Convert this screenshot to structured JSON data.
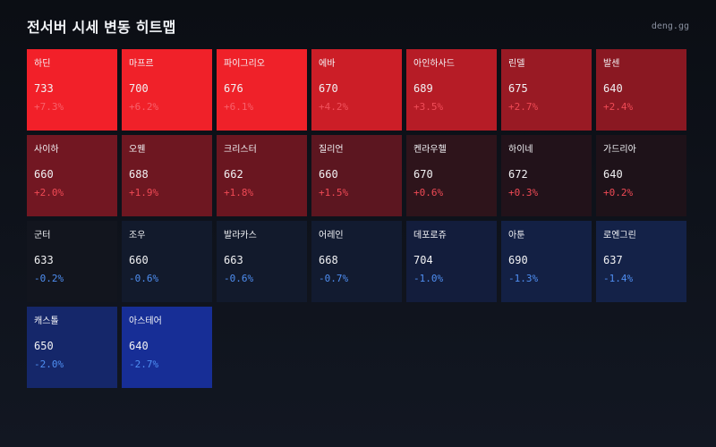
{
  "header": {
    "title": "전서버 시세 변동 히트맵",
    "brand": "deng.gg"
  },
  "tiles": [
    {
      "name": "하딘",
      "price": "733",
      "change": "+7.3%",
      "pct": 7.3,
      "bg": "#f22029",
      "change_color": "#f8606a"
    },
    {
      "name": "마프르",
      "price": "700",
      "change": "+6.2%",
      "pct": 6.2,
      "bg": "#f02129",
      "change_color": "#f8606a"
    },
    {
      "name": "파이그리오",
      "price": "676",
      "change": "+6.1%",
      "pct": 6.1,
      "bg": "#ef2129",
      "change_color": "#f8606a"
    },
    {
      "name": "에바",
      "price": "670",
      "change": "+4.2%",
      "pct": 4.2,
      "bg": "#cc1e27",
      "change_color": "#f2525c"
    },
    {
      "name": "아인하사드",
      "price": "689",
      "change": "+3.5%",
      "pct": 3.5,
      "bg": "#b61c26",
      "change_color": "#f04d58"
    },
    {
      "name": "린델",
      "price": "675",
      "change": "+2.7%",
      "pct": 2.7,
      "bg": "#991a24",
      "change_color": "#f04a55"
    },
    {
      "name": "발센",
      "price": "640",
      "change": "+2.4%",
      "pct": 2.4,
      "bg": "#8a1822",
      "change_color": "#f04a55"
    },
    {
      "name": "사이하",
      "price": "660",
      "change": "+2.0%",
      "pct": 2.0,
      "bg": "#721722",
      "change_color": "#f04a55"
    },
    {
      "name": "오웬",
      "price": "688",
      "change": "+1.9%",
      "pct": 1.9,
      "bg": "#6e1721",
      "change_color": "#f04a55"
    },
    {
      "name": "크리스터",
      "price": "662",
      "change": "+1.8%",
      "pct": 1.8,
      "bg": "#6a1620",
      "change_color": "#f04a55"
    },
    {
      "name": "질리언",
      "price": "660",
      "change": "+1.5%",
      "pct": 1.5,
      "bg": "#5c1620",
      "change_color": "#f04a55"
    },
    {
      "name": "켄라우헬",
      "price": "670",
      "change": "+0.6%",
      "pct": 0.6,
      "bg": "#2e141b",
      "change_color": "#f04a55"
    },
    {
      "name": "하이네",
      "price": "672",
      "change": "+0.3%",
      "pct": 0.3,
      "bg": "#22121a",
      "change_color": "#f04a55"
    },
    {
      "name": "가드리아",
      "price": "640",
      "change": "+0.2%",
      "pct": 0.2,
      "bg": "#1e1219",
      "change_color": "#f04a55"
    },
    {
      "name": "군터",
      "price": "633",
      "change": "-0.2%",
      "pct": -0.2,
      "bg": "#12151e",
      "change_color": "#4f8ff2"
    },
    {
      "name": "조우",
      "price": "660",
      "change": "-0.6%",
      "pct": -0.6,
      "bg": "#121a2c",
      "change_color": "#4f8ff2"
    },
    {
      "name": "발라카스",
      "price": "663",
      "change": "-0.6%",
      "pct": -0.6,
      "bg": "#121a2c",
      "change_color": "#4f8ff2"
    },
    {
      "name": "어레인",
      "price": "668",
      "change": "-0.7%",
      "pct": -0.7,
      "bg": "#121b30",
      "change_color": "#4f8ff2"
    },
    {
      "name": "데포로쥬",
      "price": "704",
      "change": "-1.0%",
      "pct": -1.0,
      "bg": "#131d3c",
      "change_color": "#4f8ff2"
    },
    {
      "name": "아툰",
      "price": "690",
      "change": "-1.3%",
      "pct": -1.3,
      "bg": "#132044",
      "change_color": "#4f8ff2"
    },
    {
      "name": "로엔그린",
      "price": "637",
      "change": "-1.4%",
      "pct": -1.4,
      "bg": "#142248",
      "change_color": "#4f8ff2"
    },
    {
      "name": "캐스톨",
      "price": "650",
      "change": "-2.0%",
      "pct": -2.0,
      "bg": "#15276a",
      "change_color": "#4f8ff2"
    },
    {
      "name": "아스테어",
      "price": "640",
      "change": "-2.7%",
      "pct": -2.7,
      "bg": "#172e96",
      "change_color": "#4f8ff2"
    }
  ]
}
